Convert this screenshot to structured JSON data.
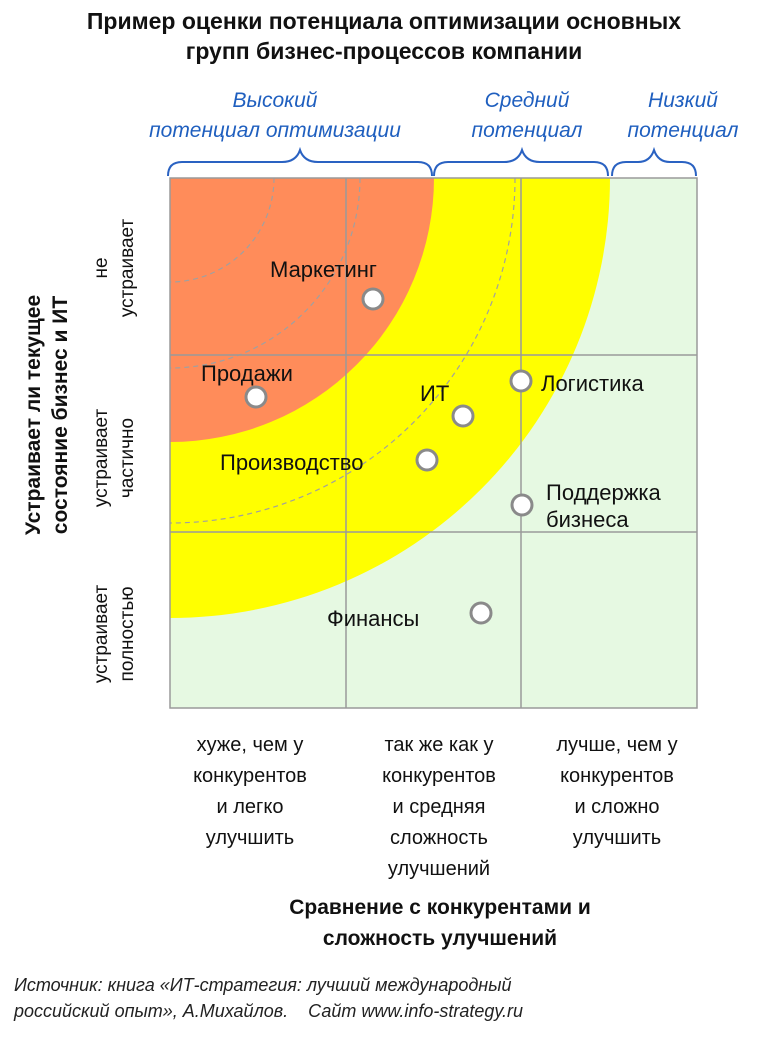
{
  "title": [
    "Пример оценки потенциала оптимизации основных",
    "групп бизнес-процессов компании"
  ],
  "potential_zones": [
    {
      "lines": [
        "Высокий",
        "потенциал оптимизации"
      ],
      "color": "#ff8c5a"
    },
    {
      "lines": [
        "Средний",
        "потенциал"
      ],
      "color": "#ffff00"
    },
    {
      "lines": [
        "Низкий",
        "потенциал"
      ],
      "color": "#e6f9e2"
    }
  ],
  "y_axis": {
    "title": [
      "Устраивает ли текущее",
      "состояние бизнес и ИТ"
    ],
    "rows": [
      {
        "lines": [
          "не",
          "устраивает"
        ]
      },
      {
        "lines": [
          "устраивает",
          "частично"
        ]
      },
      {
        "lines": [
          "устраивает",
          "полностью"
        ]
      }
    ]
  },
  "x_axis": {
    "title": [
      "Сравнение с конкурентами и",
      "сложность улучшений"
    ],
    "columns": [
      {
        "lines": [
          "хуже, чем у",
          "конкурентов",
          "и легко",
          "улучшить"
        ]
      },
      {
        "lines": [
          "так же как у",
          "конкурентов",
          "и средняя",
          "сложность",
          "улучшений"
        ]
      },
      {
        "lines": [
          "лучше, чем у",
          "конкурентов",
          "и сложно",
          "улучшить"
        ]
      }
    ]
  },
  "processes": [
    {
      "name": "Маркетинг",
      "label_lines": [
        "Маркетинг"
      ]
    },
    {
      "name": "Продажи",
      "label_lines": [
        "Продажи"
      ]
    },
    {
      "name": "ИТ",
      "label_lines": [
        "ИТ"
      ]
    },
    {
      "name": "Логистика",
      "label_lines": [
        "Логистика"
      ]
    },
    {
      "name": "Производство",
      "label_lines": [
        "Производство"
      ]
    },
    {
      "name": "Поддержка бизнеса",
      "label_lines": [
        "Поддержка",
        "бизнеса"
      ]
    },
    {
      "name": "Финансы",
      "label_lines": [
        "Финансы"
      ]
    }
  ],
  "source": [
    "Источник: книга «ИТ-стратегия: лучший международный",
    "российский опыт», А.Михайлов.    Сайт www.info-strategy.ru"
  ]
}
